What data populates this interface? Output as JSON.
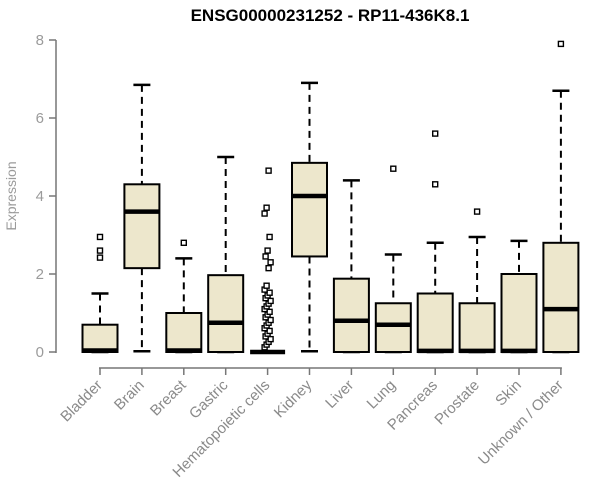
{
  "header": {
    "title": "ENSG00000231252 - RP11-436K8.1"
  },
  "chart_data": {
    "type": "boxplot",
    "title": "ENSG00000231252 - RP11-436K8.1",
    "xlabel": "",
    "ylabel": "Expression",
    "ylim": [
      0,
      8
    ],
    "yticks": [
      0,
      2,
      4,
      6,
      8
    ],
    "grid": "off",
    "legend": "none",
    "categories": [
      "Bladder",
      "Brain",
      "Breast",
      "Gastric",
      "Hematopoietic cells",
      "Kidney",
      "Liver",
      "Lung",
      "Pancreas",
      "Prostate",
      "Skin",
      "Unknown / Other"
    ],
    "boxes": [
      {
        "category": "Bladder",
        "whisker_low": 0,
        "q1": 0,
        "median": 0.04,
        "q3": 0.7,
        "whisker_high": 1.5,
        "outliers": [
          2.42,
          2.6,
          2.95
        ]
      },
      {
        "category": "Brain",
        "whisker_low": 0.02,
        "q1": 2.15,
        "median": 3.6,
        "q3": 4.3,
        "whisker_high": 6.85,
        "outliers": []
      },
      {
        "category": "Breast",
        "whisker_low": 0,
        "q1": 0,
        "median": 0.04,
        "q3": 1.0,
        "whisker_high": 2.4,
        "outliers": [
          2.8
        ]
      },
      {
        "category": "Gastric",
        "whisker_low": 0,
        "q1": 0,
        "median": 0.75,
        "q3": 1.97,
        "whisker_high": 5.0,
        "outliers": []
      },
      {
        "category": "Hematopoietic cells",
        "whisker_low": 0,
        "q1": 0,
        "median": 0,
        "q3": 0,
        "whisker_high": 0,
        "outliers": [
          0.12,
          0.19,
          0.26,
          0.33,
          0.4,
          0.47,
          0.54,
          0.61,
          0.68,
          0.75,
          0.82,
          0.89,
          0.96,
          1.03,
          1.1,
          1.17,
          1.24,
          1.31,
          1.38,
          1.45,
          1.52,
          1.6,
          1.7,
          2.15,
          2.3,
          2.45,
          2.6,
          2.95,
          3.55,
          3.7,
          4.65
        ]
      },
      {
        "category": "Kidney",
        "whisker_low": 0.02,
        "q1": 2.45,
        "median": 4.0,
        "q3": 4.85,
        "whisker_high": 6.9,
        "outliers": []
      },
      {
        "category": "Liver",
        "whisker_low": 0,
        "q1": 0,
        "median": 0.8,
        "q3": 1.88,
        "whisker_high": 4.4,
        "outliers": []
      },
      {
        "category": "Lung",
        "whisker_low": 0,
        "q1": 0,
        "median": 0.7,
        "q3": 1.25,
        "whisker_high": 2.5,
        "outliers": [
          4.7
        ]
      },
      {
        "category": "Pancreas",
        "whisker_low": 0,
        "q1": 0,
        "median": 0.03,
        "q3": 1.5,
        "whisker_high": 2.8,
        "outliers": [
          4.3,
          5.6
        ]
      },
      {
        "category": "Prostate",
        "whisker_low": 0,
        "q1": 0,
        "median": 0.03,
        "q3": 1.25,
        "whisker_high": 2.95,
        "outliers": [
          3.6
        ]
      },
      {
        "category": "Skin",
        "whisker_low": 0,
        "q1": 0,
        "median": 0.03,
        "q3": 2.0,
        "whisker_high": 2.85,
        "outliers": []
      },
      {
        "category": "Unknown / Other",
        "whisker_low": 0,
        "q1": 0,
        "median": 1.1,
        "q3": 2.8,
        "whisker_high": 6.7,
        "outliers": [
          7.9
        ]
      }
    ],
    "colors": {
      "box_fill": "#EDE7CC",
      "box_stroke": "#000000",
      "median": "#000000",
      "whisker": "#000000",
      "outlier_stroke": "#000000",
      "outlier_fill": "#ffffff",
      "axis_line": "#777777",
      "tick_label": "#9b9b9b",
      "category_label": "#8a8a8a",
      "title": "#000000",
      "background": "#ffffff"
    }
  }
}
